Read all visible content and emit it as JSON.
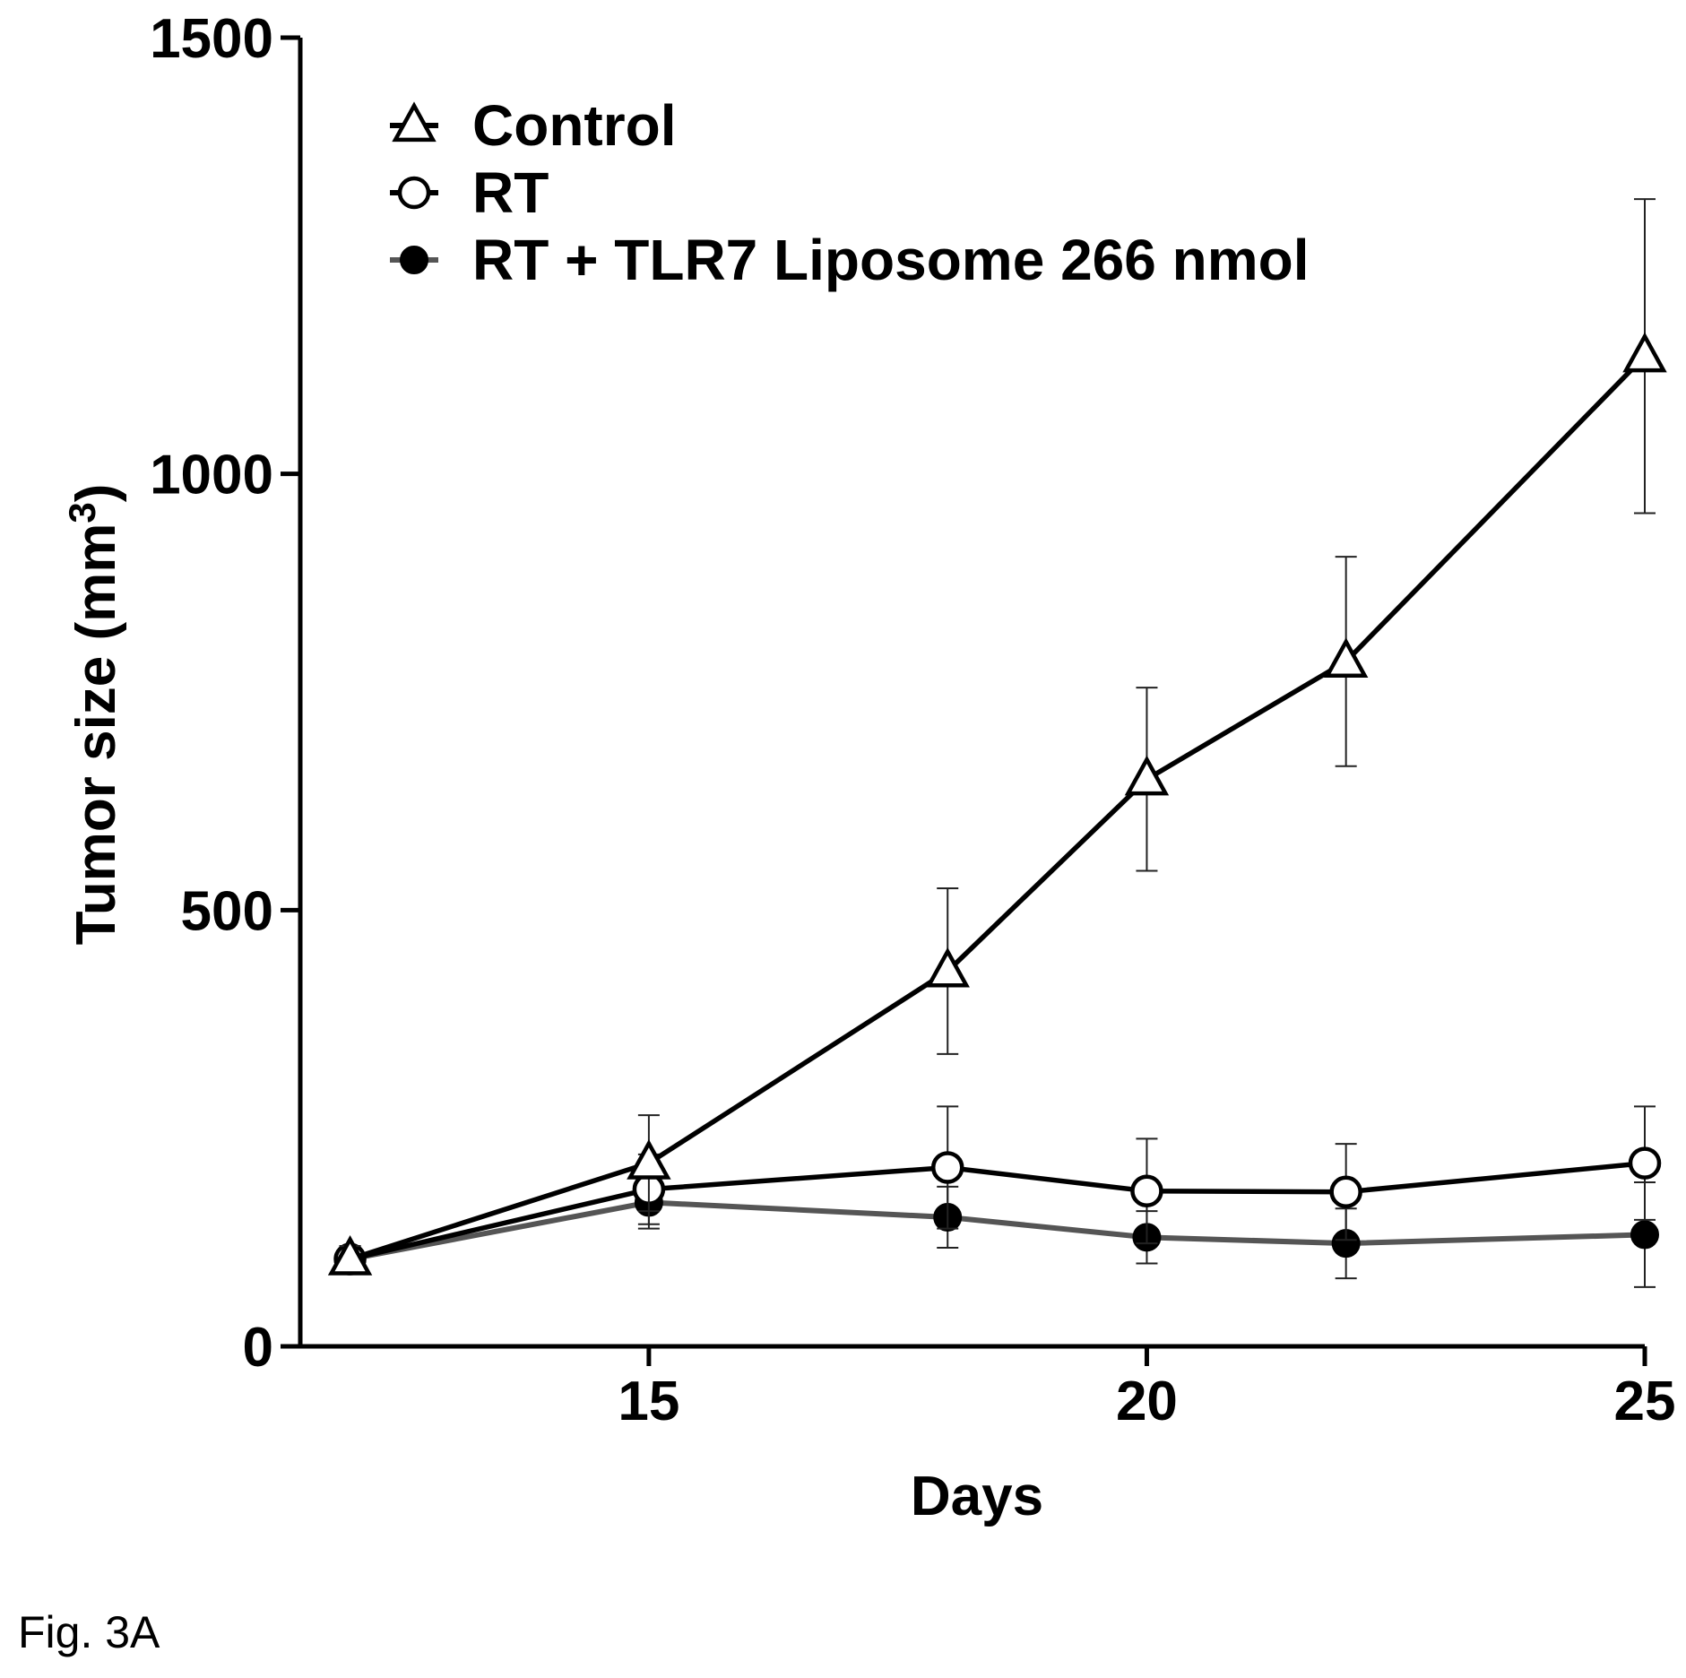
{
  "caption": "Fig. 3A",
  "chart_data": {
    "type": "line",
    "xlabel": "Days",
    "ylabel_main": "Tumor size (mm",
    "ylabel_sup": "3",
    "ylabel_close": ")",
    "xlim": [
      11.5,
      25
    ],
    "ylim": [
      0,
      1500
    ],
    "xticks": [
      15,
      20,
      25
    ],
    "yticks": [
      0,
      500,
      1000,
      1500
    ],
    "grid": false,
    "legend_position": "top-left",
    "series": [
      {
        "name": "Control",
        "marker": "open-triangle",
        "color": "#000000",
        "x": [
          12,
          15,
          18,
          20,
          22,
          25
        ],
        "y": [
          100,
          210,
          430,
          650,
          785,
          1135
        ],
        "err": [
          15,
          55,
          95,
          105,
          120,
          180
        ]
      },
      {
        "name": "RT",
        "marker": "open-circle",
        "color": "#000000",
        "x": [
          12,
          15,
          18,
          20,
          22,
          25
        ],
        "y": [
          100,
          180,
          205,
          178,
          177,
          210
        ],
        "err": [
          15,
          40,
          70,
          60,
          55,
          65
        ]
      },
      {
        "name": "RT + TLR7 Liposome 266 nmol",
        "marker": "filled-circle",
        "color": "#555555",
        "x": [
          12,
          15,
          18,
          20,
          22,
          25
        ],
        "y": [
          100,
          165,
          148,
          125,
          118,
          128
        ],
        "err": [
          15,
          30,
          35,
          30,
          40,
          60
        ]
      }
    ]
  }
}
